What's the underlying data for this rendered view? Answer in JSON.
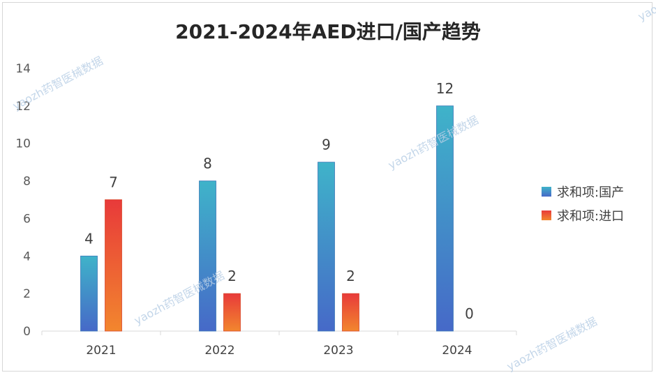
{
  "chart_data": {
    "type": "bar",
    "title": "2021-2024年AED进口/国产趋势",
    "categories": [
      "2021",
      "2022",
      "2023",
      "2024"
    ],
    "series": [
      {
        "name": "求和项:国产",
        "values": [
          4,
          8,
          9,
          12
        ],
        "color_top": "#3fb3c9",
        "color_bottom": "#4669c8"
      },
      {
        "name": "求和项:进口",
        "values": [
          7,
          2,
          2,
          0
        ],
        "color_top": "#e83a3a",
        "color_bottom": "#f2862e"
      }
    ],
    "ylim": [
      0,
      14
    ],
    "yticks": [
      0,
      2,
      4,
      6,
      8,
      10,
      12,
      14
    ],
    "xlabel": "",
    "ylabel": "",
    "grid": false,
    "legend": "right"
  },
  "watermark": "yaozh药智医械数据"
}
